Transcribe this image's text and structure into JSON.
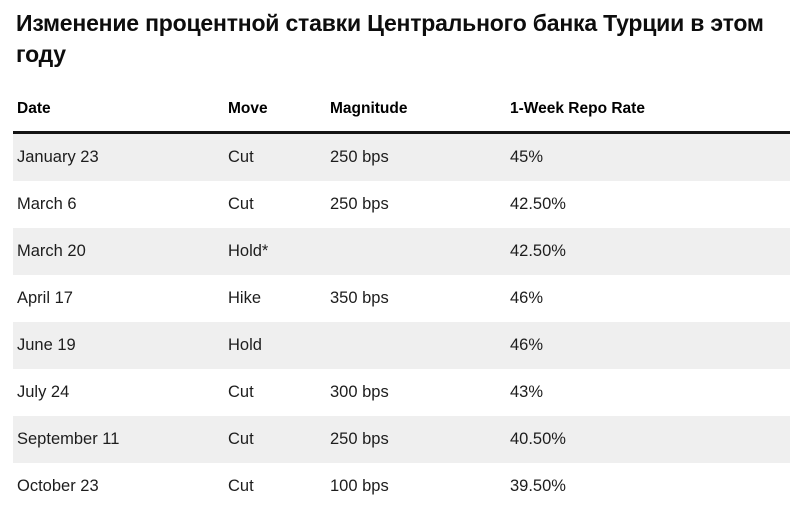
{
  "header": {
    "title": "Изменение процентной ставки Центрального банка Турции в этом году"
  },
  "table": {
    "columns": [
      "Date",
      "Move",
      "Magnitude",
      "1-Week Repo Rate"
    ],
    "rows": [
      {
        "date": "January 23",
        "move": "Cut",
        "magnitude": "250 bps",
        "rate": "45%"
      },
      {
        "date": "March 6",
        "move": "Cut",
        "magnitude": "250 bps",
        "rate": "42.50%"
      },
      {
        "date": "March 20",
        "move": "Hold*",
        "magnitude": "",
        "rate": "42.50%"
      },
      {
        "date": "April 17",
        "move": "Hike",
        "magnitude": "350 bps",
        "rate": "46%"
      },
      {
        "date": "June 19",
        "move": "Hold",
        "magnitude": "",
        "rate": "46%"
      },
      {
        "date": "July 24",
        "move": "Cut",
        "magnitude": "300 bps",
        "rate": "43%"
      },
      {
        "date": "September 11",
        "move": "Cut",
        "magnitude": "250 bps",
        "rate": "40.50%"
      },
      {
        "date": "October 23",
        "move": "Cut",
        "magnitude": "100 bps",
        "rate": "39.50%"
      }
    ]
  },
  "colors": {
    "row_stripe": "#efefef",
    "header_rule": "#141414",
    "text": "#1d1d1d",
    "title_text": "#0d0d0d",
    "background": "#ffffff"
  },
  "chart_data": {
    "type": "table",
    "title": "Изменение процентной ставки Центрального банка Турции в этом году",
    "columns": [
      "Date",
      "Move",
      "Magnitude",
      "1-Week Repo Rate"
    ],
    "rows": [
      [
        "January 23",
        "Cut",
        "250 bps",
        "45%"
      ],
      [
        "March 6",
        "Cut",
        "250 bps",
        "42.50%"
      ],
      [
        "March 20",
        "Hold*",
        "",
        "42.50%"
      ],
      [
        "April 17",
        "Hike",
        "350 bps",
        "46%"
      ],
      [
        "June 19",
        "Hold",
        "",
        "46%"
      ],
      [
        "July 24",
        "Cut",
        "300 bps",
        "43%"
      ],
      [
        "September 11",
        "Cut",
        "250 bps",
        "40.50%"
      ],
      [
        "October 23",
        "Cut",
        "100 bps",
        "39.50%"
      ]
    ],
    "repo_rate_values_pct": [
      45,
      42.5,
      42.5,
      46,
      46,
      43,
      40.5,
      39.5
    ],
    "magnitude_values_bps": [
      250,
      250,
      null,
      350,
      null,
      300,
      250,
      100
    ],
    "layout": {
      "striped_rows": true,
      "stripe_on_odd_rows": true,
      "header_rule": "thick-black"
    }
  }
}
